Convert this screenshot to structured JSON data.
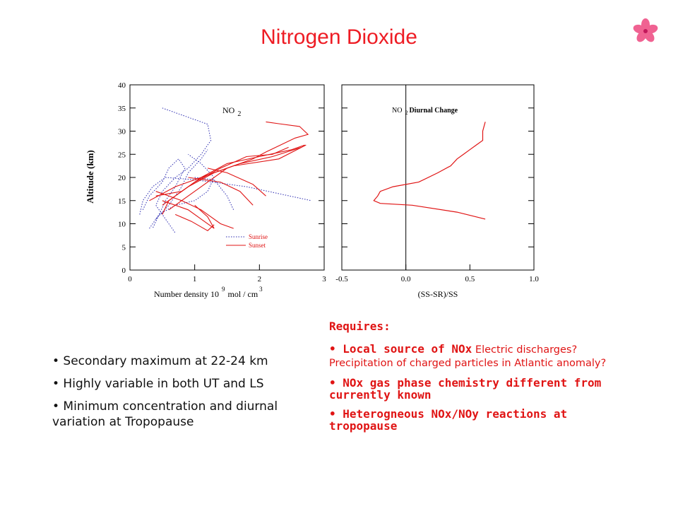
{
  "slide": {
    "title": "Nitrogen Dioxide",
    "logo_icon": "flower-icon",
    "accent_color": "#ee1c24"
  },
  "left_bullets": [
    "• Secondary maximum at 22-24 km",
    "• Highly variable in both UT and LS",
    "• Minimum concentration and diurnal variation at Tropopause"
  ],
  "requires": {
    "heading": "Requires:",
    "items": [
      {
        "bold": "• Local source of NOx",
        "light": " Electric discharges? Precipitation of charged particles in Atlantic anomaly?"
      },
      {
        "bold": "• NOx gas phase chemistry different from currently known",
        "light": ""
      },
      {
        "bold": "• Heterogneous NOx/NOy reactions at tropopause",
        "light": ""
      }
    ]
  },
  "chart_data": [
    {
      "type": "line",
      "title": "NO2",
      "title_parts": {
        "base": "NO",
        "subscript": "2"
      },
      "xlabel": "Number density 10 9 mol / cm 3",
      "xlabel_parts": {
        "base": "Number density 10",
        "exp": "9",
        "mid": "mol / cm",
        "exp2": "3"
      },
      "ylabel": "Altitude (km)",
      "xlim": [
        0,
        3
      ],
      "ylim": [
        0,
        40
      ],
      "xticks": [
        0,
        1,
        2,
        3
      ],
      "yticks": [
        0,
        5,
        10,
        15,
        20,
        25,
        30,
        35,
        40
      ],
      "grid": false,
      "legend_position": "bottom-right",
      "series": [
        {
          "name": "Sunrise",
          "style": "dotted",
          "color": "#2a2ab0",
          "profiles": [
            [
              [
                0.5,
                35
              ],
              [
                0.9,
                33
              ],
              [
                1.2,
                31.5
              ],
              [
                1.25,
                28
              ],
              [
                1.1,
                25
              ],
              [
                0.9,
                22
              ],
              [
                0.7,
                20
              ],
              [
                0.5,
                17
              ],
              [
                0.4,
                14
              ],
              [
                0.5,
                12
              ],
              [
                0.6,
                10
              ],
              [
                0.7,
                8
              ]
            ],
            [
              [
                0.2,
                13
              ],
              [
                0.3,
                16
              ],
              [
                0.5,
                19
              ],
              [
                0.6,
                22
              ],
              [
                0.75,
                24
              ],
              [
                0.85,
                22
              ],
              [
                0.7,
                18
              ],
              [
                0.55,
                15
              ],
              [
                0.45,
                12
              ],
              [
                0.35,
                9
              ]
            ],
            [
              [
                0.15,
                12
              ],
              [
                0.2,
                15
              ],
              [
                0.35,
                18
              ],
              [
                0.55,
                20
              ],
              [
                1.0,
                19.5
              ],
              [
                1.8,
                18
              ],
              [
                2.8,
                15
              ]
            ],
            [
              [
                0.3,
                9
              ],
              [
                0.45,
                12
              ],
              [
                0.7,
                14
              ],
              [
                1.0,
                15
              ],
              [
                1.2,
                17
              ],
              [
                1.3,
                20
              ],
              [
                1.1,
                23
              ],
              [
                0.9,
                25
              ]
            ],
            [
              [
                0.4,
                11
              ],
              [
                0.6,
                14
              ],
              [
                0.8,
                18
              ],
              [
                0.9,
                21
              ],
              [
                1.1,
                24
              ],
              [
                1.2,
                26
              ]
            ],
            [
              [
                1.0,
                20
              ],
              [
                1.3,
                19.5
              ],
              [
                1.5,
                16
              ],
              [
                1.6,
                13
              ]
            ]
          ]
        },
        {
          "name": "Sunset",
          "style": "solid",
          "color": "#e01414",
          "profiles": [
            [
              [
                0.5,
                14
              ],
              [
                0.7,
                16
              ],
              [
                1.0,
                19
              ],
              [
                1.4,
                22
              ],
              [
                1.8,
                24.5
              ],
              [
                2.2,
                25
              ],
              [
                2.45,
                26.5
              ]
            ],
            [
              [
                0.5,
                12
              ],
              [
                0.6,
                15
              ],
              [
                0.9,
                18
              ],
              [
                1.3,
                21
              ],
              [
                1.7,
                23
              ],
              [
                2.2,
                24.5
              ],
              [
                2.65,
                26.5
              ]
            ],
            [
              [
                0.4,
                16
              ],
              [
                0.8,
                17
              ],
              [
                1.1,
                20
              ],
              [
                1.5,
                23
              ],
              [
                2.0,
                24.5
              ],
              [
                2.5,
                26
              ],
              [
                2.7,
                27
              ]
            ],
            [
              [
                0.3,
                15
              ],
              [
                0.7,
                18
              ],
              [
                1.2,
                20.5
              ],
              [
                1.6,
                22.5
              ],
              [
                2.3,
                24
              ],
              [
                2.72,
                27
              ]
            ],
            [
              [
                0.6,
                13
              ],
              [
                0.9,
                16
              ],
              [
                1.2,
                19
              ],
              [
                1.5,
                22
              ],
              [
                1.9,
                24
              ],
              [
                2.1,
                25.5
              ],
              [
                2.55,
                28.5
              ],
              [
                2.75,
                29.3
              ],
              [
                2.62,
                31
              ],
              [
                2.3,
                31.6
              ],
              [
                2.1,
                32
              ]
            ],
            [
              [
                0.5,
                15
              ],
              [
                0.9,
                13
              ],
              [
                1.1,
                11
              ],
              [
                1.3,
                9
              ],
              [
                1.2,
                11.5
              ],
              [
                1.0,
                14
              ]
            ],
            [
              [
                0.7,
                12
              ],
              [
                0.95,
                10.5
              ],
              [
                1.2,
                8.5
              ],
              [
                1.3,
                9.8
              ]
            ],
            [
              [
                0.4,
                17
              ],
              [
                0.8,
                15
              ],
              [
                1.1,
                13
              ],
              [
                1.4,
                10
              ],
              [
                1.6,
                9
              ]
            ],
            [
              [
                0.9,
                20
              ],
              [
                1.4,
                19
              ],
              [
                1.7,
                17
              ],
              [
                1.9,
                14
              ]
            ],
            [
              [
                1.2,
                22
              ],
              [
                1.5,
                21
              ],
              [
                1.9,
                18.5
              ],
              [
                2.1,
                16
              ]
            ]
          ]
        }
      ]
    },
    {
      "type": "line",
      "title": "NO2 Diurnal Change",
      "title_parts": {
        "base": "NO",
        "subscript": "2",
        "rest": "Diurnal Change"
      },
      "xlabel": "(SS-SR)/SS",
      "ylabel": "",
      "xlim": [
        -0.5,
        1.0
      ],
      "ylim": [
        0,
        40
      ],
      "xticks": [
        "-0.5",
        "0.0",
        "0.5",
        "1.0"
      ],
      "grid": false,
      "reference_line_x": 0.0,
      "series": [
        {
          "style": "solid",
          "color": "#e01414",
          "profiles": [
            [
              [
                0.62,
                11
              ],
              [
                0.4,
                12.5
              ],
              [
                0.05,
                14
              ],
              [
                -0.2,
                14.4
              ],
              [
                -0.25,
                15
              ],
              [
                -0.22,
                16
              ],
              [
                -0.2,
                17
              ],
              [
                -0.1,
                18
              ],
              [
                0.1,
                19
              ],
              [
                0.25,
                21
              ],
              [
                0.35,
                22.5
              ],
              [
                0.4,
                24
              ],
              [
                0.45,
                25
              ],
              [
                0.5,
                26
              ],
              [
                0.55,
                27
              ],
              [
                0.6,
                28
              ],
              [
                0.6,
                30
              ],
              [
                0.62,
                32
              ]
            ]
          ]
        }
      ]
    }
  ]
}
